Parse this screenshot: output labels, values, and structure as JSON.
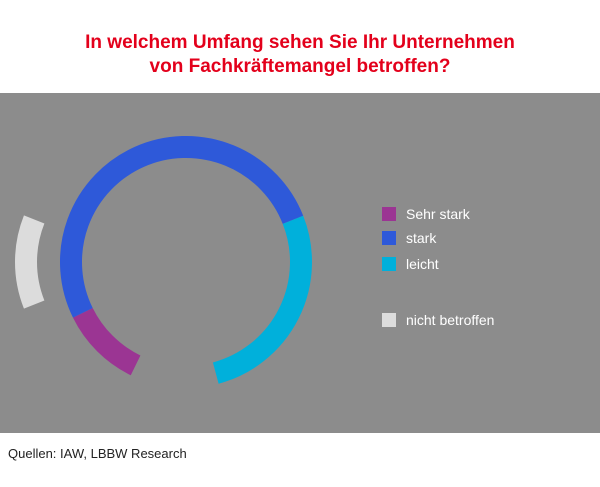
{
  "title": {
    "line1": "In welchem Umfang sehen Sie Ihr Unternehmen",
    "line2": "von Fachkräftemangel betroffen?"
  },
  "chart_data": {
    "type": "pie",
    "style": "ring",
    "title": "In welchem Umfang sehen Sie Ihr Unternehmen von Fachkräftemangel betroffen?",
    "categories": [
      "Sehr stark",
      "stark",
      "leicht",
      "nicht betroffen"
    ],
    "values": [
      9,
      44,
      23,
      9
    ],
    "colors": [
      "#9b3593",
      "#2e59d9",
      "#00b0db",
      "#dcdcdc"
    ],
    "legend_position": "right"
  },
  "legend": {
    "items": [
      {
        "label": "Sehr stark",
        "color": "#9b3593"
      },
      {
        "label": "stark",
        "color": "#2e59d9"
      },
      {
        "label": "leicht",
        "color": "#00b0db"
      },
      {
        "label": "nicht betroffen",
        "color": "#dcdcdc"
      }
    ]
  },
  "source": "Quellen: IAW, LBBW Research"
}
